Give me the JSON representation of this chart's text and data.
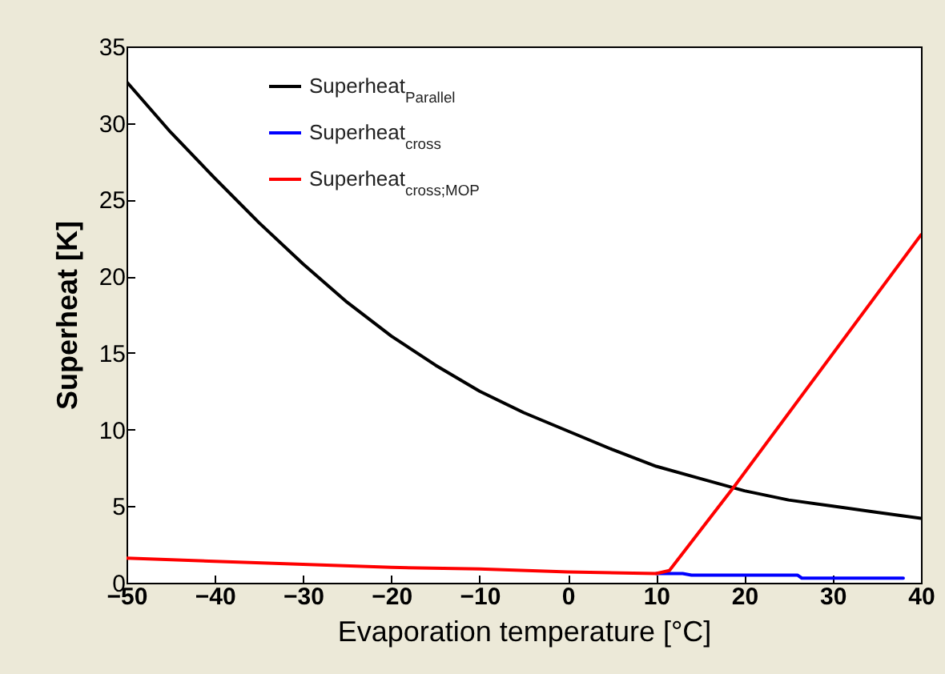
{
  "chart_data": {
    "type": "line",
    "xlabel": "Evaporation temperature [°C]",
    "ylabel": "Superheat [K]",
    "xlim": [
      -50,
      40
    ],
    "xticks": [
      -50,
      -40,
      -30,
      -20,
      -10,
      0,
      10,
      20,
      30,
      40
    ],
    "ylim": [
      0,
      35
    ],
    "yticks": [
      0,
      5,
      10,
      15,
      20,
      25,
      30,
      35
    ],
    "grid": false,
    "legend": "top left",
    "marker": "none",
    "line_style": "solid",
    "series": [
      {
        "name": "Superheat$_{Parallel}$",
        "color": "#000000",
        "x": [
          -50,
          -45,
          -40,
          -35,
          -30,
          -25,
          -20,
          -15,
          -10,
          -5,
          0,
          5,
          10,
          15,
          20,
          25,
          30,
          35,
          40
        ],
        "values": [
          32.7,
          29.4,
          26.4,
          23.5,
          20.8,
          18.3,
          16.1,
          14.2,
          12.5,
          11.1,
          9.9,
          8.7,
          7.6,
          6.8,
          6.0,
          5.4,
          5.0,
          4.6,
          4.2
        ]
      },
      {
        "name": "Superheat$_{cross}$",
        "color": "#0000ff",
        "x": [
          10,
          13,
          14,
          26,
          26.5,
          38
        ],
        "values": [
          0.6,
          0.6,
          0.5,
          0.5,
          0.3,
          0.3
        ]
      },
      {
        "name": "Superheat$_{cross;MOP}$",
        "color": "#ff0000",
        "x": [
          -50,
          -40,
          -30,
          -20,
          -10,
          0,
          10,
          11.5,
          19,
          40
        ],
        "values": [
          1.6,
          1.4,
          1.2,
          1.0,
          0.9,
          0.7,
          0.6,
          0.8,
          6.4,
          22.7
        ]
      }
    ]
  }
}
